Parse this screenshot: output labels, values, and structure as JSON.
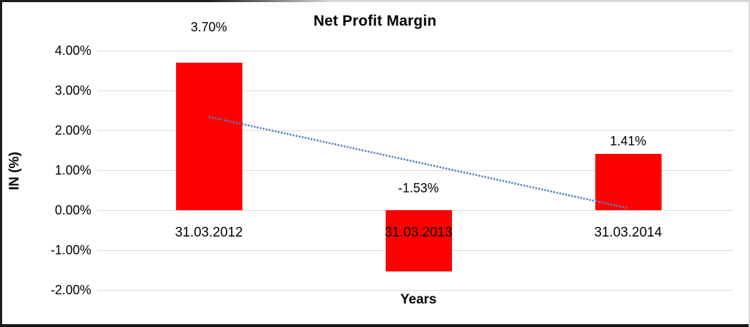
{
  "chart_data": {
    "type": "bar",
    "title": "Net Profit Margin",
    "ylabel": "IN (%)",
    "xlabel": "Years",
    "categories": [
      "31.03.2012",
      "31.03.2013",
      "31.03.2014"
    ],
    "values": [
      3.7,
      -1.53,
      1.41
    ],
    "data_labels": [
      "3.70%",
      "-1.53%",
      "1.41%"
    ],
    "yticks": [
      {
        "label": "4.00%",
        "value": 4
      },
      {
        "label": "3.00%",
        "value": 3
      },
      {
        "label": "2.00%",
        "value": 2
      },
      {
        "label": "1.00%",
        "value": 1
      },
      {
        "label": "0.00%",
        "value": 0
      },
      {
        "label": "-1.00%",
        "value": -1
      },
      {
        "label": "-2.00%",
        "value": -2
      }
    ],
    "ylim": [
      -2,
      4
    ],
    "grid": true,
    "legend_position": "none",
    "bar_color": "#ff0000",
    "gridline_color": "#d9d9d9",
    "trendline": {
      "type": "linear",
      "style": "dotted",
      "color": "#4f81bd",
      "start_value": 2.34,
      "end_value": 0.05
    }
  }
}
